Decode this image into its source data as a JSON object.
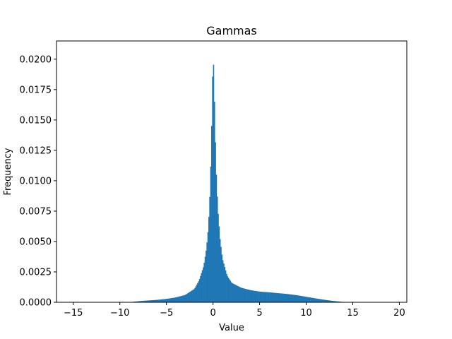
{
  "chart_data": {
    "type": "histogram",
    "title": "Gammas",
    "xlabel": "Value",
    "ylabel": "Frequency",
    "xlim": [
      -16.8,
      20.8
    ],
    "ylim": [
      0,
      0.0215
    ],
    "x_ticks": [
      -15,
      -10,
      -5,
      0,
      5,
      10,
      15,
      20
    ],
    "x_tick_labels": [
      "−15",
      "−10",
      "−5",
      "0",
      "5",
      "10",
      "15",
      "20"
    ],
    "y_ticks": [
      0,
      0.0025,
      0.005,
      0.0075,
      0.01,
      0.0125,
      0.015,
      0.0175,
      0.02
    ],
    "y_tick_labels": [
      "0.0000",
      "0.0025",
      "0.0050",
      "0.0075",
      "0.0100",
      "0.0125",
      "0.0150",
      "0.0175",
      "0.0200"
    ],
    "grid": false,
    "bar_color": "#1f77b4",
    "bin_width": 0.1,
    "density_profile": [
      {
        "x": -9.0,
        "y": 0.0
      },
      {
        "x": -8.5,
        "y": 5e-05
      },
      {
        "x": -7.5,
        "y": 0.00012
      },
      {
        "x": -6.0,
        "y": 0.0002
      },
      {
        "x": -5.0,
        "y": 0.00028
      },
      {
        "x": -4.0,
        "y": 0.0004
      },
      {
        "x": -3.0,
        "y": 0.0006
      },
      {
        "x": -2.0,
        "y": 0.0011
      },
      {
        "x": -1.5,
        "y": 0.0018
      },
      {
        "x": -1.0,
        "y": 0.003
      },
      {
        "x": -0.7,
        "y": 0.0045
      },
      {
        "x": -0.5,
        "y": 0.0062
      },
      {
        "x": -0.3,
        "y": 0.0095
      },
      {
        "x": -0.15,
        "y": 0.0145
      },
      {
        "x": 0.0,
        "y": 0.0206
      },
      {
        "x": 0.1,
        "y": 0.0185
      },
      {
        "x": 0.2,
        "y": 0.0145
      },
      {
        "x": 0.35,
        "y": 0.0105
      },
      {
        "x": 0.5,
        "y": 0.0078
      },
      {
        "x": 0.75,
        "y": 0.0052
      },
      {
        "x": 1.0,
        "y": 0.0036
      },
      {
        "x": 1.5,
        "y": 0.0022
      },
      {
        "x": 2.0,
        "y": 0.0016
      },
      {
        "x": 3.0,
        "y": 0.0012
      },
      {
        "x": 4.0,
        "y": 0.001
      },
      {
        "x": 5.0,
        "y": 0.00088
      },
      {
        "x": 6.0,
        "y": 0.00082
      },
      {
        "x": 7.0,
        "y": 0.00075
      },
      {
        "x": 8.0,
        "y": 0.00068
      },
      {
        "x": 9.0,
        "y": 0.00058
      },
      {
        "x": 10.0,
        "y": 0.00045
      },
      {
        "x": 11.0,
        "y": 0.00032
      },
      {
        "x": 12.0,
        "y": 0.0002
      },
      {
        "x": 13.0,
        "y": 0.0001
      },
      {
        "x": 13.8,
        "y": 4e-05
      },
      {
        "x": 14.1,
        "y": 0.0
      }
    ]
  }
}
